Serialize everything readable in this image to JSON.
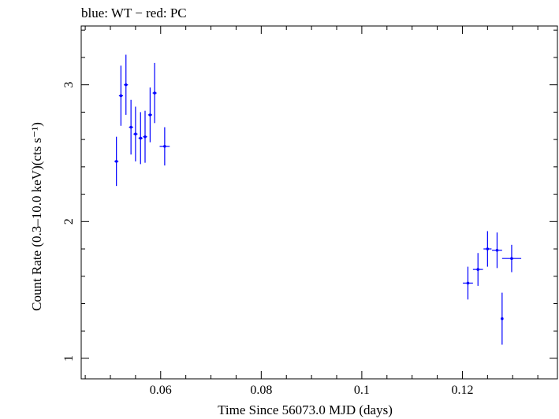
{
  "chart_data": {
    "type": "scatter",
    "title": "blue: WT − red: PC",
    "xlabel": "Time Since 56073.0 MJD (days)",
    "ylabel": "Count Rate (0.3–10.0 keV)(cts s⁻¹)",
    "xlim": [
      0.0442,
      0.1389
    ],
    "ylim": [
      0.85,
      3.43
    ],
    "x_ticks": [
      0.06,
      0.08,
      0.1,
      0.12
    ],
    "x_tick_labels": [
      "0.06",
      "0.08",
      "0.1",
      "0.12"
    ],
    "y_ticks": [
      1,
      2,
      3
    ],
    "y_tick_labels": [
      "1",
      "2",
      "3"
    ],
    "grid": false,
    "legend": "none",
    "series": [
      {
        "color": "#0000ff",
        "points": [
          {
            "x": 0.0512,
            "xerr": 0.0004,
            "y": 2.44,
            "yerr": 0.18
          },
          {
            "x": 0.0521,
            "xerr": 0.0004,
            "y": 2.92,
            "yerr": 0.22
          },
          {
            "x": 0.0531,
            "xerr": 0.0004,
            "y": 3.0,
            "yerr": 0.22
          },
          {
            "x": 0.0541,
            "xerr": 0.0004,
            "y": 2.69,
            "yerr": 0.2
          },
          {
            "x": 0.055,
            "xerr": 0.0004,
            "y": 2.64,
            "yerr": 0.2
          },
          {
            "x": 0.056,
            "xerr": 0.0004,
            "y": 2.61,
            "yerr": 0.19
          },
          {
            "x": 0.0569,
            "xerr": 0.0004,
            "y": 2.62,
            "yerr": 0.19
          },
          {
            "x": 0.0579,
            "xerr": 0.0004,
            "y": 2.78,
            "yerr": 0.2
          },
          {
            "x": 0.0588,
            "xerr": 0.0004,
            "y": 2.94,
            "yerr": 0.22
          },
          {
            "x": 0.0608,
            "xerr": 0.001,
            "y": 2.55,
            "yerr": 0.14
          },
          {
            "x": 0.1211,
            "xerr": 0.001,
            "y": 1.55,
            "yerr": 0.12
          },
          {
            "x": 0.1231,
            "xerr": 0.001,
            "y": 1.65,
            "yerr": 0.12
          },
          {
            "x": 0.125,
            "xerr": 0.0008,
            "y": 1.8,
            "yerr": 0.13
          },
          {
            "x": 0.1269,
            "xerr": 0.001,
            "y": 1.79,
            "yerr": 0.13
          },
          {
            "x": 0.1279,
            "xerr": 0.0001,
            "y": 1.29,
            "yerr": 0.19
          },
          {
            "x": 0.1298,
            "xerr": 0.0019,
            "y": 1.73,
            "yerr": 0.1
          }
        ]
      }
    ]
  }
}
